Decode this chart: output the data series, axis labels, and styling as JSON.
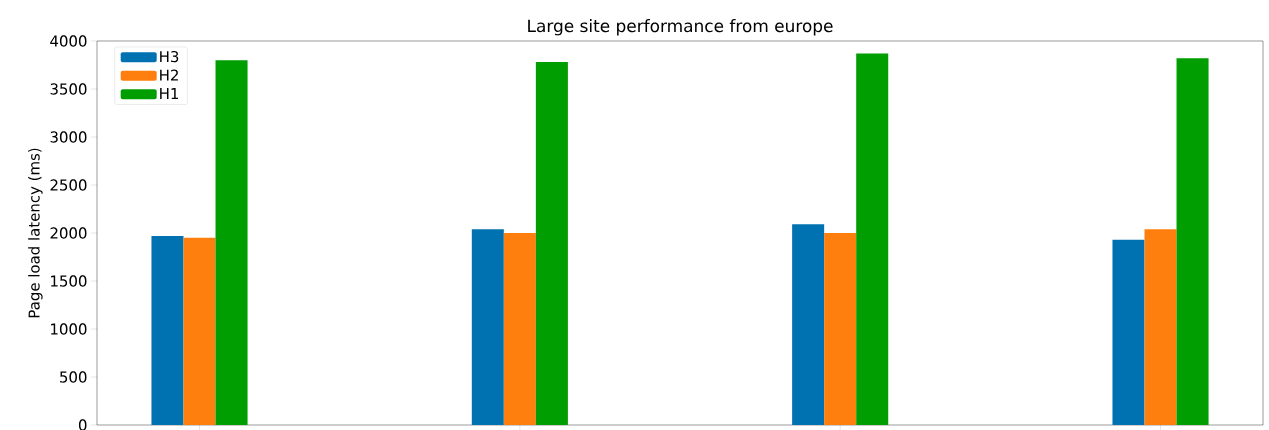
{
  "chart_data": {
    "type": "bar",
    "title": "Large site performance from europe",
    "ylabel": "Page load latency (ms)",
    "categories": [
      null,
      null,
      null,
      null
    ],
    "series": [
      {
        "name": "H3",
        "color": "#0072b2",
        "values": [
          1970,
          2040,
          2090,
          1930
        ]
      },
      {
        "name": "H2",
        "color": "#ff7f0e",
        "values": [
          1950,
          2000,
          2000,
          2040
        ]
      },
      {
        "name": "H1",
        "color": "#009e00",
        "values": [
          3800,
          3780,
          3870,
          3820
        ]
      }
    ],
    "ylim": [
      0,
      4000
    ],
    "yticks": [
      0,
      500,
      1000,
      1500,
      2000,
      2500,
      3000,
      3500,
      4000
    ],
    "legend": "top left",
    "tick_labels": "y"
  }
}
